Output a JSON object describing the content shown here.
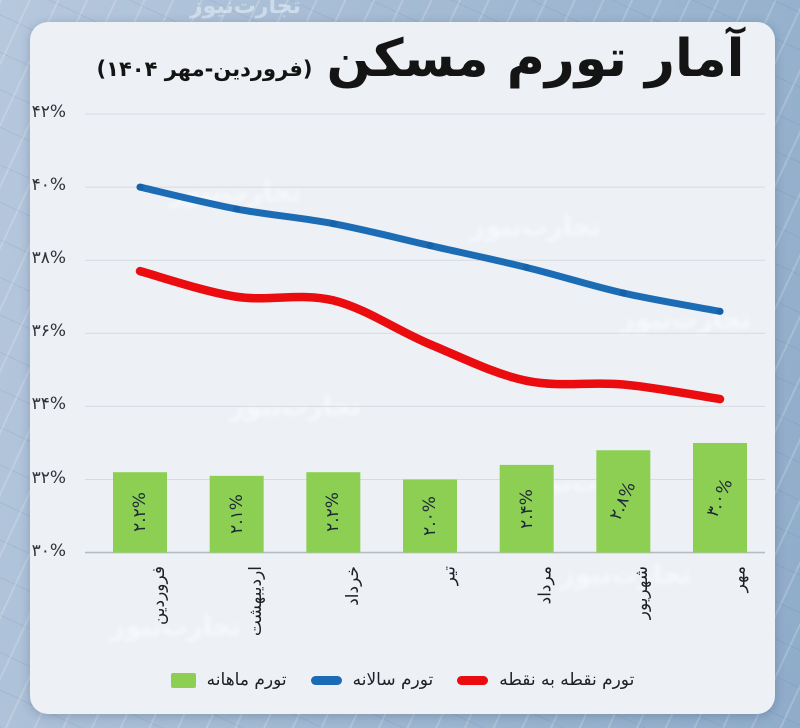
{
  "title": {
    "main": "آمار تورم مسکن",
    "range": "(فروردین-مهر ۱۴۰۴)"
  },
  "watermark": {
    "text": "تجارت‌نیوز"
  },
  "chart_data": {
    "type": "combo",
    "categories": [
      "فروردین",
      "اردیبهشت",
      "خرداد",
      "تیر",
      "مرداد",
      "شهریور",
      "مهر"
    ],
    "series": [
      {
        "name": "تورم ماهانه",
        "type": "bar",
        "color": "#8ccf52",
        "values": [
          2.2,
          2.1,
          2.2,
          2.0,
          2.4,
          2.8,
          3.0
        ],
        "value_labels": [
          "۲.۲%",
          "۲.۱%",
          "۲.۲%",
          "۲.۰%",
          "۲.۴%",
          "۲.۸%",
          "۳.۰%"
        ]
      },
      {
        "name": "تورم سالانه",
        "type": "line",
        "color": "#1b6cb5",
        "values": [
          40.0,
          39.4,
          39.0,
          38.4,
          37.8,
          37.1,
          36.6
        ]
      },
      {
        "name": "تورم نقطه به نقطه",
        "type": "line",
        "color": "#ea0c0e",
        "values": [
          37.7,
          37.0,
          36.9,
          35.7,
          34.7,
          34.6,
          34.2
        ]
      }
    ],
    "y_axis": {
      "min": 30,
      "max": 42,
      "tick_step": 2,
      "ticks": [
        42,
        40,
        38,
        36,
        34,
        32,
        30
      ],
      "tick_labels": [
        "۴۲%",
        "۴۰%",
        "۳۸%",
        "۳۶%",
        "۳۴%",
        "۳۲%",
        "۳۰%"
      ]
    },
    "bar_baseline_percent": 30,
    "grid": true,
    "legend_position": "bottom"
  }
}
